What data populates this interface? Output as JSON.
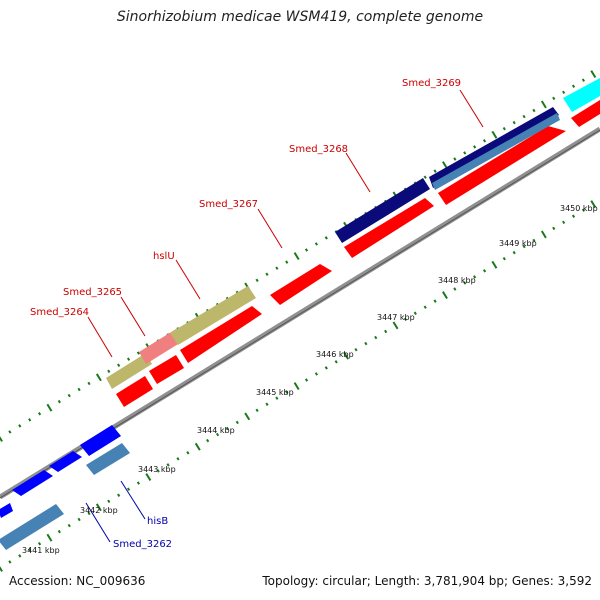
{
  "title": "Sinorhizobium medicae WSM419, complete genome",
  "footer": {
    "accession": "Accession: NC_009636",
    "summary": "Topology: circular; Length: 3,781,904 bp; Genes: 3,592"
  },
  "colors": {
    "backbone": "#808080",
    "tick": "#1a7a1a",
    "forward_cds": "#0000ff",
    "forward_gene": "#4682b4",
    "reverse_cds": "#ff0000",
    "reverse_gene": "#ff0000",
    "label_forward": "#0000aa",
    "label_reverse": "#cc0000",
    "highlight_navy": "#0a0a7a",
    "highlight_olive": "#bdb76b",
    "highlight_pink": "#f08080",
    "highlight_cyan": "#00ffff"
  },
  "scale": {
    "kbp_labels": [
      "3441 kbp",
      "3442 kbp",
      "3443 kbp",
      "3444 kbp",
      "3445 kbp",
      "3446 kbp",
      "3447 kbp",
      "3448 kbp",
      "3449 kbp",
      "3450 kbp"
    ]
  },
  "features": [
    {
      "name": "Smed_3262",
      "strand": "forward",
      "color": "label_forward"
    },
    {
      "name": "hisB",
      "strand": "forward",
      "color": "label_forward"
    },
    {
      "name": "Smed_3264",
      "strand": "reverse",
      "color": "label_reverse"
    },
    {
      "name": "Smed_3265",
      "strand": "reverse",
      "color": "label_reverse"
    },
    {
      "name": "hslU",
      "strand": "reverse",
      "color": "label_reverse"
    },
    {
      "name": "Smed_3267",
      "strand": "reverse",
      "color": "label_reverse"
    },
    {
      "name": "Smed_3268",
      "strand": "reverse",
      "color": "label_reverse"
    },
    {
      "name": "Smed_3269",
      "strand": "reverse",
      "color": "label_reverse"
    }
  ]
}
